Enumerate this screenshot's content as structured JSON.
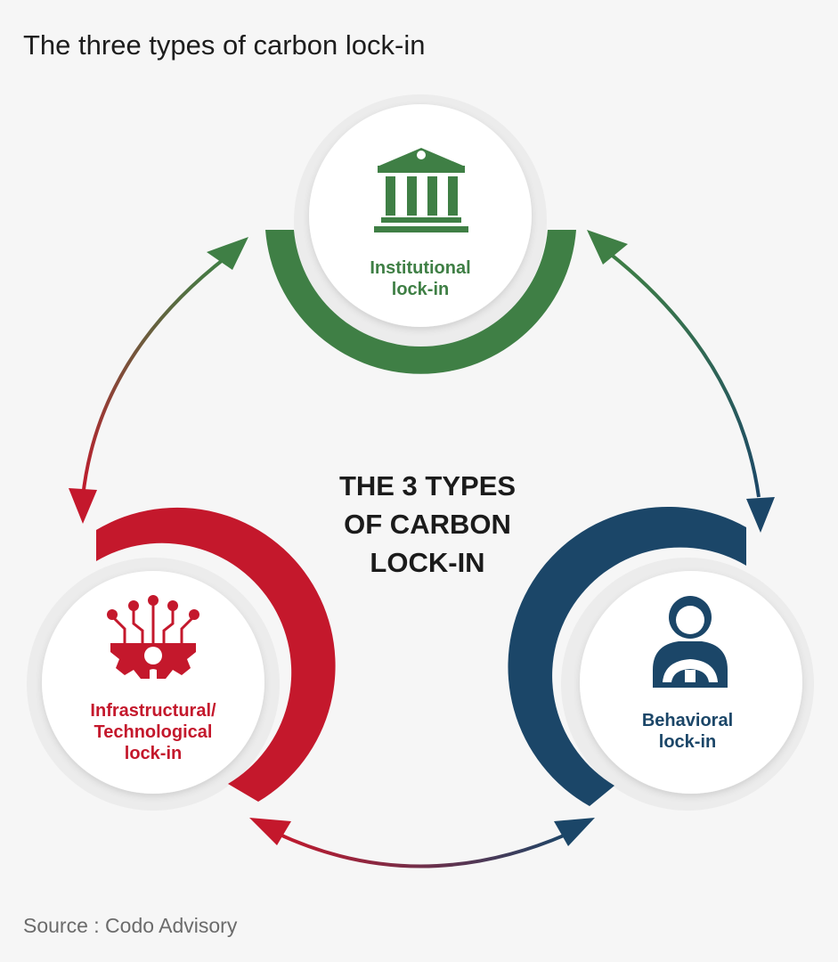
{
  "title": "The three types of carbon lock-in",
  "source": "Source : Codo Advisory",
  "center": {
    "lines": [
      "THE 3 TYPES",
      "OF CARBON",
      "LOCK-IN"
    ]
  },
  "nodes": {
    "institutional": {
      "lines": [
        "Institutional",
        "lock-in"
      ],
      "icon": "institution-building-icon",
      "color": "#3f7f45"
    },
    "infrastructural": {
      "lines": [
        "Infrastructural/",
        "Technological",
        "lock-in"
      ],
      "icon": "circuit-gear-icon",
      "color": "#c4182c"
    },
    "behavioral": {
      "lines": [
        "Behavioral",
        "lock-in"
      ],
      "icon": "driver-steering-wheel-icon",
      "color": "#1b4668"
    }
  },
  "colors": {
    "green": "#3f7f45",
    "red": "#c4182c",
    "blue": "#1b4668",
    "background": "#f6f6f6"
  }
}
